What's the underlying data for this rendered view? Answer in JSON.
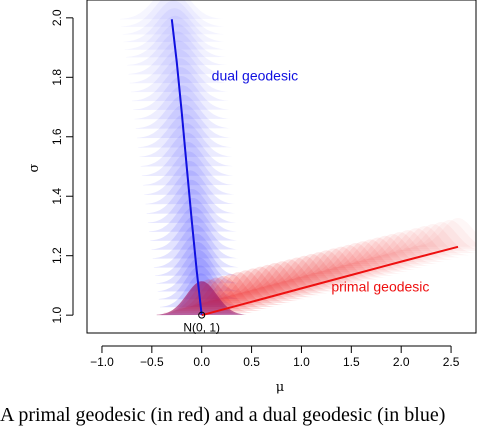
{
  "chart_data": {
    "type": "line",
    "xlabel": "μ",
    "ylabel": "σ",
    "xlim": [
      -1.15,
      2.75
    ],
    "ylim": [
      0.94,
      2.06
    ],
    "x_ticks": [
      -1.0,
      -0.5,
      0.0,
      0.5,
      1.0,
      1.5,
      2.0,
      2.5
    ],
    "x_tick_labels": [
      "−1.0",
      "−0.5",
      "0.0",
      "0.5",
      "1.0",
      "1.5",
      "2.0",
      "2.5"
    ],
    "y_ticks": [
      1.0,
      1.2,
      1.4,
      1.6,
      1.8,
      2.0
    ],
    "y_tick_labels": [
      "1.0",
      "1.2",
      "1.4",
      "1.6",
      "1.8",
      "2.0"
    ],
    "grid": false,
    "series": [
      {
        "name": "dual geodesic",
        "color": "#1010e0",
        "x": [
          0.0,
          -0.05,
          -0.1,
          -0.15,
          -0.2,
          -0.25,
          -0.3
        ],
        "y": [
          1.0,
          1.15,
          1.32,
          1.5,
          1.68,
          1.85,
          1.995
        ]
      },
      {
        "name": "primal geodesic",
        "color": "#ee1010",
        "x": [
          0.0,
          0.5,
          1.0,
          1.5,
          2.0,
          2.57
        ],
        "y": [
          1.0,
          1.045,
          1.09,
          1.135,
          1.18,
          1.23
        ]
      }
    ],
    "annotations": [
      {
        "text": "dual geodesic",
        "x": 0.1,
        "y": 1.79,
        "color": "#1010e0"
      },
      {
        "text": "primal geodesic",
        "x": 1.3,
        "y": 1.08,
        "color": "#ee1010"
      },
      {
        "text": "N(0, 1)",
        "x": 0.0,
        "y": 0.985,
        "color": "#000000"
      }
    ],
    "origin_point": {
      "x": 0.0,
      "y": 1.0
    }
  },
  "caption": "A primal geodesic (in red) and a dual geodesic (in blue)"
}
